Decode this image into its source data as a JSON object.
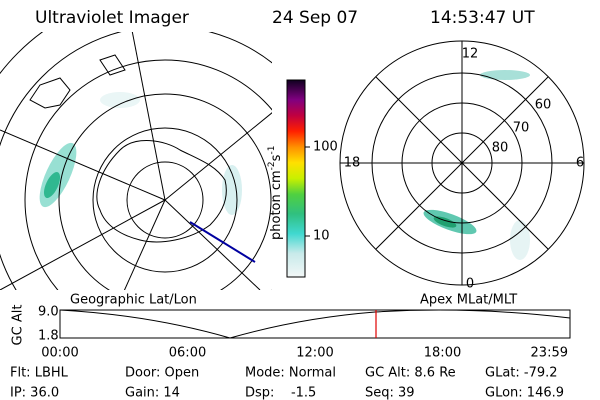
{
  "header": {
    "title": "Ultraviolet Imager",
    "date": "24 Sep 07",
    "time": "14:53:47 UT"
  },
  "colorbar": {
    "label": "photon cm",
    "exp1": "-2",
    "unit2": "s",
    "exp2": "-1",
    "ticks": [
      "100",
      "10"
    ]
  },
  "polar": {
    "labels": [
      "12",
      "6",
      "0",
      "18",
      "60",
      "70",
      "80"
    ]
  },
  "panels": {
    "left": "Geographic Lat/Lon",
    "right": "Apex MLat/MLT"
  },
  "timeline": {
    "ylabel": "GC Alt",
    "yticks": [
      "9.0",
      "1.8"
    ],
    "xticks": [
      "00:00",
      "06:00",
      "12:00",
      "18:00",
      "23:59"
    ]
  },
  "info": {
    "row1": [
      "Flt: LBHL",
      "Door: Open",
      "Mode: Normal",
      "GC Alt: 8.6 Re",
      "GLat: -79.2"
    ],
    "row2": [
      "IP: 36.0",
      "Gain: 14",
      "Dsp:    -1.5",
      "Seq: 39",
      "GLon: 146.9"
    ]
  }
}
